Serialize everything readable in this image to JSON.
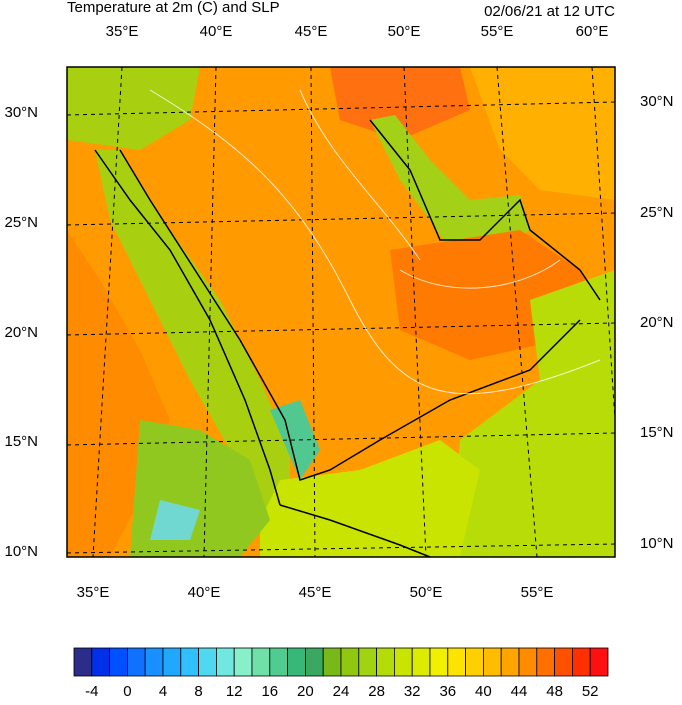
{
  "title": "Temperature at 2m (C) and SLP",
  "timestamp": "02/06/21 at 12 UTC",
  "top_labels": [
    "35°E",
    "40°E",
    "45°E",
    "50°E",
    "55°E",
    "60°E"
  ],
  "bottom_labels": [
    "35°E",
    "40°E",
    "45°E",
    "50°E",
    "55°E"
  ],
  "left_labels": [
    "30°N",
    "25°N",
    "20°N",
    "15°N",
    "10°N"
  ],
  "right_labels": [
    "30°N",
    "25°N",
    "20°N",
    "15°N",
    "10°N"
  ],
  "colorbar": {
    "range": [
      -6,
      54
    ],
    "ticks": [
      -4,
      0,
      4,
      8,
      12,
      16,
      20,
      24,
      28,
      32,
      36,
      40,
      44,
      48,
      52
    ],
    "colors": [
      "#2c2c8a",
      "#0030e8",
      "#0050ff",
      "#1070ff",
      "#1890ff",
      "#20a8ff",
      "#30c0ff",
      "#50d8f0",
      "#70e8e0",
      "#88f0c8",
      "#70e0a8",
      "#50cc90",
      "#38b878",
      "#3aa860",
      "#78b818",
      "#90c810",
      "#a0d410",
      "#b4dc08",
      "#c8e400",
      "#dcec00",
      "#f0f000",
      "#fce400",
      "#ffd000",
      "#ffbc00",
      "#ffa400",
      "#ff8c00",
      "#ff7000",
      "#ff5000",
      "#ff3000",
      "#ff1010"
    ]
  }
}
